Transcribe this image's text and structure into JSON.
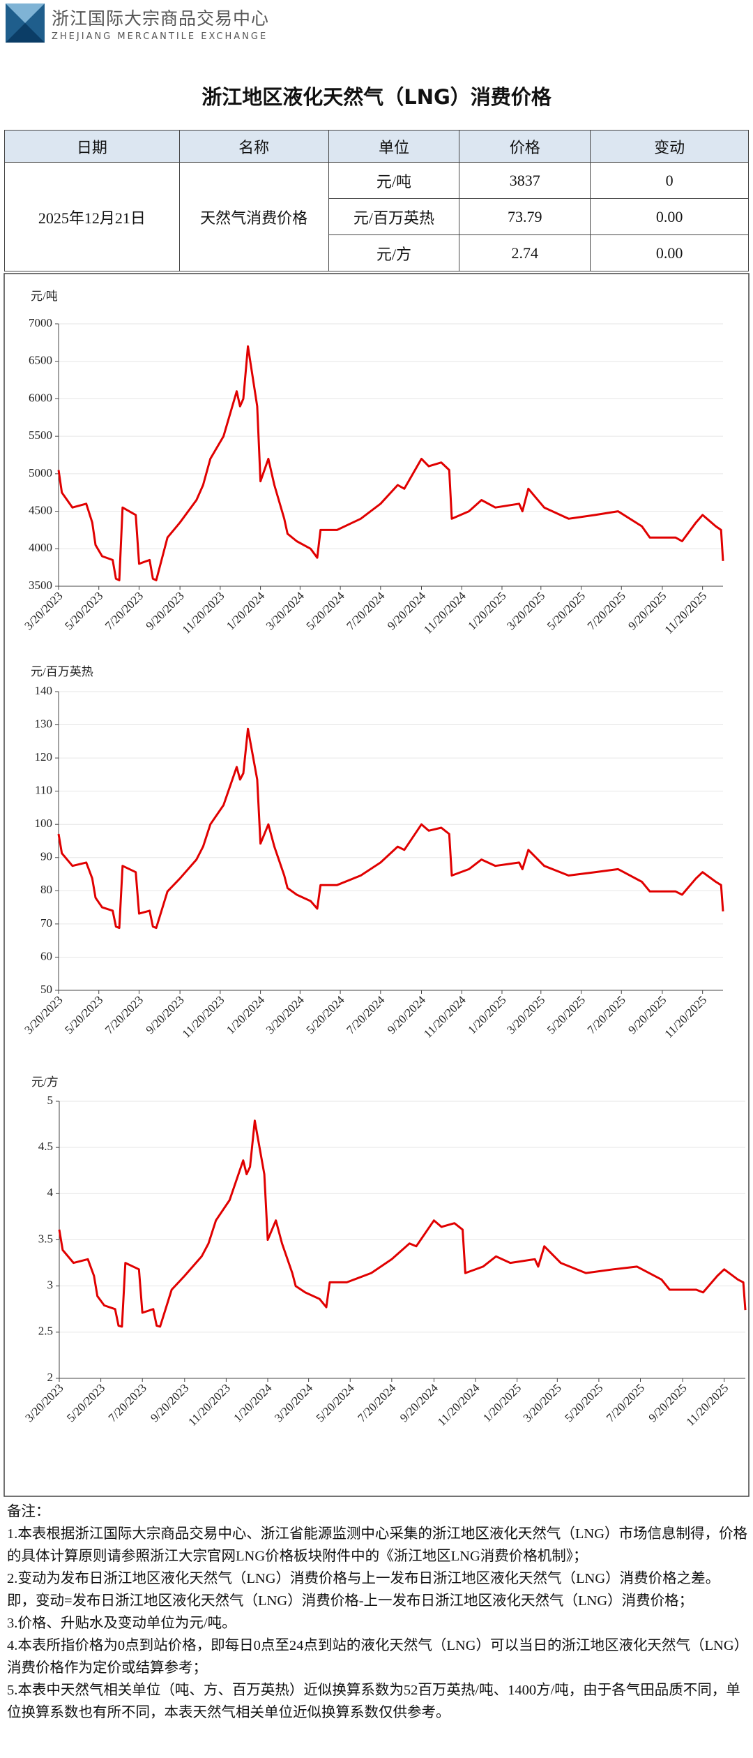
{
  "header": {
    "org_name": "浙江国际大宗商品交易中心",
    "org_name_en": "ZHEJIANG MERCANTILE EXCHANGE"
  },
  "title": "浙江地区液化天然气（LNG）消费价格",
  "table": {
    "columns": [
      "日期",
      "名称",
      "单位",
      "价格",
      "变动"
    ],
    "date": "2025年12月21日",
    "name": "天然气消费价格",
    "rows": [
      [
        "元/吨",
        "3837",
        "0"
      ],
      [
        "元/百万英热",
        "73.79",
        "0.00"
      ],
      [
        "元/方",
        "2.74",
        "0.00"
      ]
    ]
  },
  "chart_data": [
    {
      "type": "line",
      "y_label": "元/吨",
      "grid": true,
      "x": [
        "3/20/2023",
        "3/25/2023",
        "4/10/2023",
        "5/1/2023",
        "5/10/2023",
        "5/15/2023",
        "5/25/2023",
        "6/10/2023",
        "6/15/2023",
        "6/20/2023",
        "6/25/2023",
        "7/15/2023",
        "7/20/2023",
        "8/5/2023",
        "8/10/2023",
        "8/15/2023",
        "9/1/2023",
        "9/20/2023",
        "10/15/2023",
        "10/25/2023",
        "11/5/2023",
        "11/25/2023",
        "12/15/2023",
        "12/20/2023",
        "12/25/2023",
        "1/1/2024",
        "1/15/2024",
        "1/20/2024",
        "2/1/2024",
        "2/10/2024",
        "2/25/2024",
        "3/1/2024",
        "3/15/2024",
        "4/5/2024",
        "4/15/2024",
        "4/20/2024",
        "5/15/2024",
        "6/20/2024",
        "7/20/2024",
        "8/15/2024",
        "8/25/2024",
        "9/20/2024",
        "10/1/2024",
        "10/20/2024",
        "11/1/2024",
        "11/5/2024",
        "12/1/2024",
        "12/20/2024",
        "1/10/2025",
        "2/15/2025",
        "2/20/2025",
        "3/1/2025",
        "3/25/2025",
        "5/1/2025",
        "6/10/2025",
        "7/15/2025",
        "8/20/2025",
        "9/1/2025",
        "10/10/2025",
        "10/20/2025",
        "11/10/2025",
        "11/20/2025",
        "12/10/2025",
        "12/18/2025",
        "12/21/2025"
      ],
      "series": [
        {
          "color": "#e00000",
          "values": [
            5050,
            4750,
            4550,
            4600,
            4350,
            4050,
            3900,
            3850,
            3600,
            3580,
            4550,
            4450,
            3800,
            3850,
            3600,
            3580,
            4150,
            4350,
            4650,
            4850,
            5200,
            5500,
            6100,
            5900,
            6000,
            6700,
            5900,
            4900,
            5200,
            4850,
            4400,
            4200,
            4100,
            4000,
            3880,
            4250,
            4250,
            4400,
            4600,
            4850,
            4800,
            5200,
            5100,
            5150,
            5050,
            4400,
            4500,
            4650,
            4550,
            4600,
            4500,
            4800,
            4550,
            4400,
            4450,
            4500,
            4300,
            4150,
            4150,
            4100,
            4350,
            4450,
            4300,
            4250,
            3837
          ]
        }
      ],
      "xlim": [
        "3/20/2023",
        "12/21/2025"
      ],
      "xticks": [
        "3/20/2023",
        "5/20/2023",
        "7/20/2023",
        "9/20/2023",
        "11/20/2023",
        "1/20/2024",
        "3/20/2024",
        "5/20/2024",
        "7/20/2024",
        "9/20/2024",
        "11/20/2024",
        "1/20/2025",
        "3/20/2025",
        "5/20/2025",
        "7/20/2025",
        "9/20/2025",
        "11/20/2025"
      ],
      "ylim": [
        3500,
        7000
      ],
      "yticks": [
        3500,
        4000,
        4500,
        5000,
        5500,
        6000,
        6500,
        7000
      ]
    },
    {
      "type": "line",
      "y_label": "元/百万英热",
      "grid": true,
      "x": [
        "3/20/2023",
        "3/25/2023",
        "4/10/2023",
        "5/1/2023",
        "5/10/2023",
        "5/15/2023",
        "5/25/2023",
        "6/10/2023",
        "6/15/2023",
        "6/20/2023",
        "6/25/2023",
        "7/15/2023",
        "7/20/2023",
        "8/5/2023",
        "8/10/2023",
        "8/15/2023",
        "9/1/2023",
        "9/20/2023",
        "10/15/2023",
        "10/25/2023",
        "11/5/2023",
        "11/25/2023",
        "12/15/2023",
        "12/20/2023",
        "12/25/2023",
        "1/1/2024",
        "1/15/2024",
        "1/20/2024",
        "2/1/2024",
        "2/10/2024",
        "2/25/2024",
        "3/1/2024",
        "3/15/2024",
        "4/5/2024",
        "4/15/2024",
        "4/20/2024",
        "5/15/2024",
        "6/20/2024",
        "7/20/2024",
        "8/15/2024",
        "8/25/2024",
        "9/20/2024",
        "10/1/2024",
        "10/20/2024",
        "11/1/2024",
        "11/5/2024",
        "12/1/2024",
        "12/20/2024",
        "1/10/2025",
        "2/15/2025",
        "2/20/2025",
        "3/1/2025",
        "3/25/2025",
        "5/1/2025",
        "6/10/2025",
        "7/15/2025",
        "8/20/2025",
        "9/1/2025",
        "10/10/2025",
        "10/20/2025",
        "11/10/2025",
        "11/20/2025",
        "12/10/2025",
        "12/18/2025",
        "12/21/2025"
      ],
      "series": [
        {
          "color": "#e00000",
          "values": [
            97.1,
            91.3,
            87.5,
            88.5,
            83.7,
            77.9,
            75.0,
            74.0,
            69.2,
            68.8,
            87.5,
            85.6,
            73.1,
            74.0,
            69.2,
            68.8,
            79.8,
            83.7,
            89.4,
            93.3,
            100.0,
            105.8,
            117.3,
            113.5,
            115.4,
            128.8,
            113.5,
            94.2,
            100.0,
            93.3,
            84.6,
            80.8,
            78.8,
            76.9,
            74.6,
            81.7,
            81.7,
            84.6,
            88.5,
            93.3,
            92.3,
            100.0,
            98.1,
            99.0,
            97.1,
            84.6,
            86.5,
            89.4,
            87.5,
            88.5,
            86.5,
            92.3,
            87.5,
            84.6,
            85.6,
            86.5,
            82.7,
            79.8,
            79.8,
            78.8,
            83.7,
            85.6,
            82.7,
            81.7,
            73.79
          ]
        }
      ],
      "xlim": [
        "3/20/2023",
        "12/21/2025"
      ],
      "xticks": [
        "3/20/2023",
        "5/20/2023",
        "7/20/2023",
        "9/20/2023",
        "11/20/2023",
        "1/20/2024",
        "3/20/2024",
        "5/20/2024",
        "7/20/2024",
        "9/20/2024",
        "11/20/2024",
        "1/20/2025",
        "3/20/2025",
        "5/20/2025",
        "7/20/2025",
        "9/20/2025",
        "11/20/2025"
      ],
      "ylim": [
        50,
        140
      ],
      "yticks": [
        50,
        60,
        70,
        80,
        90,
        100,
        110,
        120,
        130,
        140
      ]
    },
    {
      "type": "line",
      "y_label": "元/方",
      "grid": true,
      "x": [
        "3/20/2023",
        "3/25/2023",
        "4/10/2023",
        "5/1/2023",
        "5/10/2023",
        "5/15/2023",
        "5/25/2023",
        "6/10/2023",
        "6/15/2023",
        "6/20/2023",
        "6/25/2023",
        "7/15/2023",
        "7/20/2023",
        "8/5/2023",
        "8/10/2023",
        "8/15/2023",
        "9/1/2023",
        "9/20/2023",
        "10/15/2023",
        "10/25/2023",
        "11/5/2023",
        "11/25/2023",
        "12/15/2023",
        "12/20/2023",
        "12/25/2023",
        "1/1/2024",
        "1/15/2024",
        "1/20/2024",
        "2/1/2024",
        "2/10/2024",
        "2/25/2024",
        "3/1/2024",
        "3/15/2024",
        "4/5/2024",
        "4/15/2024",
        "4/20/2024",
        "5/15/2024",
        "6/20/2024",
        "7/20/2024",
        "8/15/2024",
        "8/25/2024",
        "9/20/2024",
        "10/1/2024",
        "10/20/2024",
        "11/1/2024",
        "11/5/2024",
        "12/1/2024",
        "12/20/2024",
        "1/10/2025",
        "2/15/2025",
        "2/20/2025",
        "3/1/2025",
        "3/25/2025",
        "5/1/2025",
        "6/10/2025",
        "7/15/2025",
        "8/20/2025",
        "9/1/2025",
        "10/10/2025",
        "10/20/2025",
        "11/10/2025",
        "11/20/2025",
        "12/10/2025",
        "12/18/2025",
        "12/21/2025"
      ],
      "series": [
        {
          "color": "#e00000",
          "values": [
            3.61,
            3.39,
            3.25,
            3.29,
            3.11,
            2.89,
            2.79,
            2.75,
            2.57,
            2.56,
            3.25,
            3.18,
            2.71,
            2.75,
            2.57,
            2.56,
            2.96,
            3.11,
            3.32,
            3.46,
            3.71,
            3.93,
            4.36,
            4.21,
            4.29,
            4.79,
            4.21,
            3.5,
            3.71,
            3.46,
            3.14,
            3.0,
            2.93,
            2.86,
            2.77,
            3.04,
            3.04,
            3.14,
            3.29,
            3.46,
            3.43,
            3.71,
            3.64,
            3.68,
            3.61,
            3.14,
            3.21,
            3.32,
            3.25,
            3.29,
            3.21,
            3.43,
            3.25,
            3.14,
            3.18,
            3.21,
            3.07,
            2.96,
            2.96,
            2.93,
            3.11,
            3.18,
            3.07,
            3.04,
            2.74
          ]
        }
      ],
      "xlim": [
        "3/20/2023",
        "12/21/2025"
      ],
      "xticks": [
        "3/20/2023",
        "5/20/2023",
        "7/20/2023",
        "9/20/2023",
        "11/20/2023",
        "1/20/2024",
        "3/20/2024",
        "5/20/2024",
        "7/20/2024",
        "9/20/2024",
        "11/20/2024",
        "1/20/2025",
        "3/20/2025",
        "5/20/2025",
        "7/20/2025",
        "9/20/2025",
        "11/20/2025"
      ],
      "ylim": [
        2,
        5
      ],
      "yticks": [
        2,
        2.5,
        3,
        3.5,
        4,
        4.5,
        5
      ]
    }
  ],
  "notes": {
    "heading": "备注：",
    "items": [
      "1.本表根据浙江国际大宗商品交易中心、浙江省能源监测中心采集的浙江地区液化天然气（LNG）市场信息制得，价格的具体计算原则请参照浙江大宗官网LNG价格板块附件中的《浙江地区LNG消费价格机制》；",
      "2.变动为发布日浙江地区液化天然气（LNG）消费价格与上一发布日浙江地区液化天然气（LNG）消费价格之差。即，变动=发布日浙江地区液化天然气（LNG）消费价格-上一发布日浙江地区液化天然气（LNG）消费价格；",
      "3.价格、升贴水及变动单位为元/吨。",
      "4.本表所指价格为0点到站价格，即每日0点至24点到站的液化天然气（LNG）可以当日的浙江地区液化天然气（LNG）消费价格作为定价或结算参考；",
      "5.本表中天然气相关单位（吨、方、百万英热）近似换算系数为52百万英热/吨、1400方/吨，由于各气田品质不同，单位换算系数也有所不同，本表天然气相关单位近似换算系数仅供参考。"
    ]
  }
}
